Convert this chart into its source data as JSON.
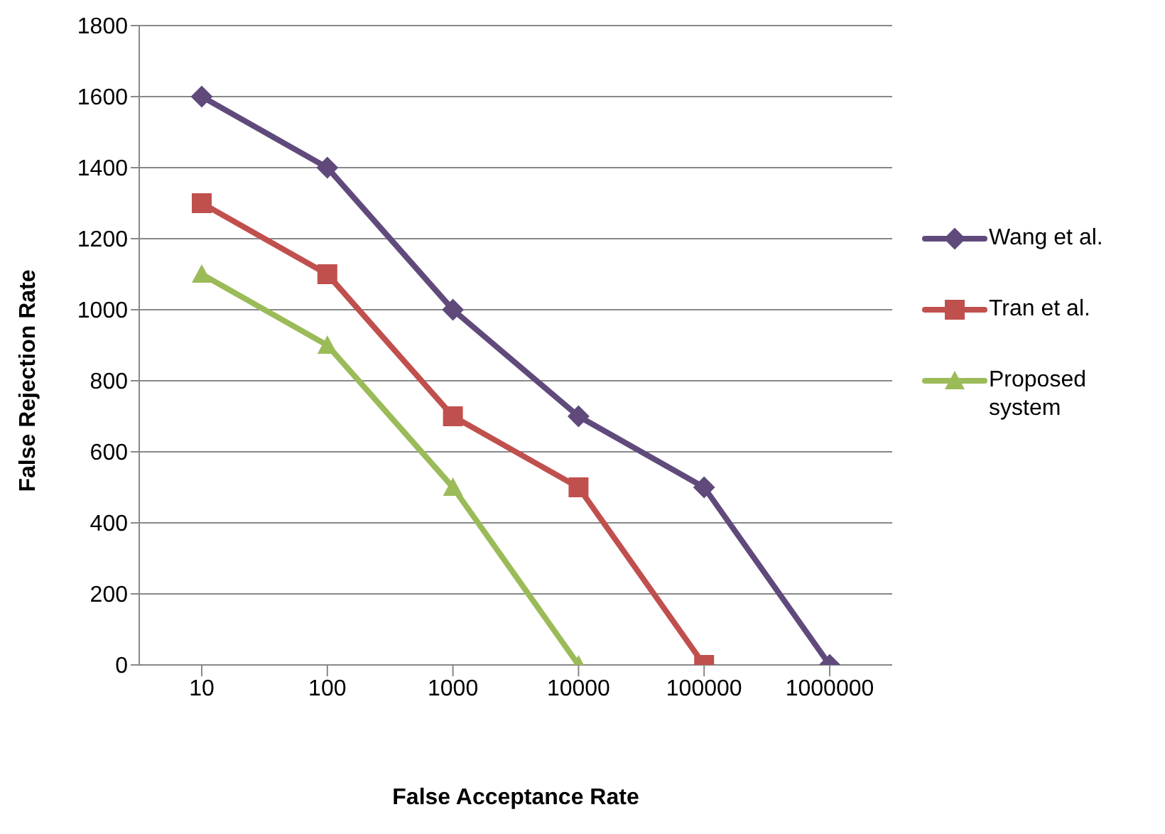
{
  "chart_data": {
    "type": "line",
    "xlabel": "False Acceptance Rate",
    "ylabel": "False Rejection Rate",
    "categories": [
      "10",
      "100",
      "1000",
      "10000",
      "100000",
      "1000000"
    ],
    "series": [
      {
        "name": "Wang et al.",
        "color": "#604a7b",
        "marker": "diamond",
        "values": [
          1600,
          1400,
          1000,
          700,
          500,
          0
        ]
      },
      {
        "name": "Tran et al.",
        "color": "#c0504d",
        "marker": "square",
        "values": [
          1300,
          1100,
          700,
          500,
          0,
          null
        ]
      },
      {
        "name": "Proposed system",
        "color": "#9bbb59",
        "marker": "triangle",
        "values": [
          1100,
          900,
          500,
          0,
          null,
          null
        ]
      }
    ],
    "ylim": [
      0,
      1800
    ],
    "yticks": [
      0,
      200,
      400,
      600,
      800,
      1000,
      1200,
      1400,
      1600,
      1800
    ],
    "grid": "y",
    "legend": "right",
    "line_style": "solid"
  }
}
